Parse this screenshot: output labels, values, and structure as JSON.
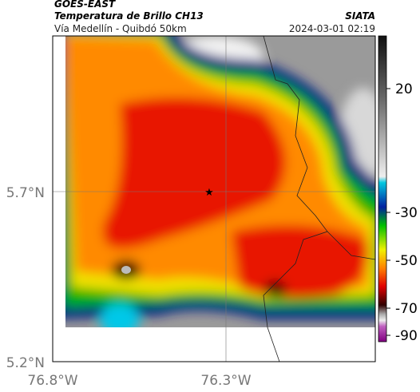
{
  "header": {
    "satellite": "GOES-EAST",
    "title": "Temperatura de Brillo CH13",
    "source": "SIATA",
    "subtitle": "Vía Medellín - Quibdó 50km",
    "timestamp": "2024-03-01 02:19"
  },
  "map": {
    "lat_labels": [
      "5.7°N",
      "5.2°N"
    ],
    "lon_labels": [
      "76.8°W",
      "76.3°W"
    ]
  },
  "colorbar": {
    "ticks": [
      20,
      -30,
      -50,
      -70,
      -90
    ]
  }
}
